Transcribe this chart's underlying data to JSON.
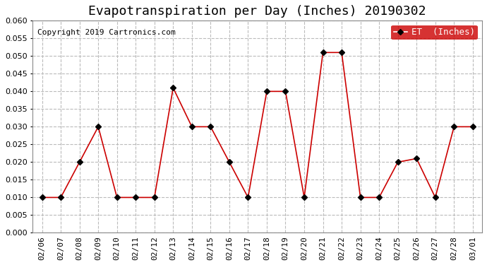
{
  "title": "Evapotranspiration per Day (Inches) 20190302",
  "copyright_text": "Copyright 2019 Cartronics.com",
  "legend_label": "ET  (Inches)",
  "dates": [
    "02/06",
    "02/07",
    "02/08",
    "02/09",
    "02/10",
    "02/11",
    "02/12",
    "02/13",
    "02/14",
    "02/15",
    "02/16",
    "02/17",
    "02/18",
    "02/19",
    "02/20",
    "02/21",
    "02/22",
    "02/23",
    "02/24",
    "02/25",
    "02/26",
    "02/27",
    "02/28",
    "03/01"
  ],
  "values": [
    0.01,
    0.01,
    0.02,
    0.03,
    0.01,
    0.01,
    0.01,
    0.041,
    0.03,
    0.03,
    0.02,
    0.01,
    0.04,
    0.04,
    0.01,
    0.051,
    0.051,
    0.01,
    0.01,
    0.02,
    0.021,
    0.01,
    0.03,
    0.03
  ],
  "line_color": "#cc0000",
  "marker": "D",
  "marker_size": 4,
  "marker_facecolor": "#000000",
  "ylim": [
    0.0,
    0.06
  ],
  "yticks": [
    0.0,
    0.005,
    0.01,
    0.015,
    0.02,
    0.025,
    0.03,
    0.035,
    0.04,
    0.045,
    0.05,
    0.055,
    0.06
  ],
  "grid_color": "#bbbbbb",
  "grid_style": "--",
  "background_color": "#ffffff",
  "legend_bg": "#cc0000",
  "legend_text_color": "#ffffff",
  "title_fontsize": 13,
  "copyright_fontsize": 8,
  "tick_fontsize": 8
}
